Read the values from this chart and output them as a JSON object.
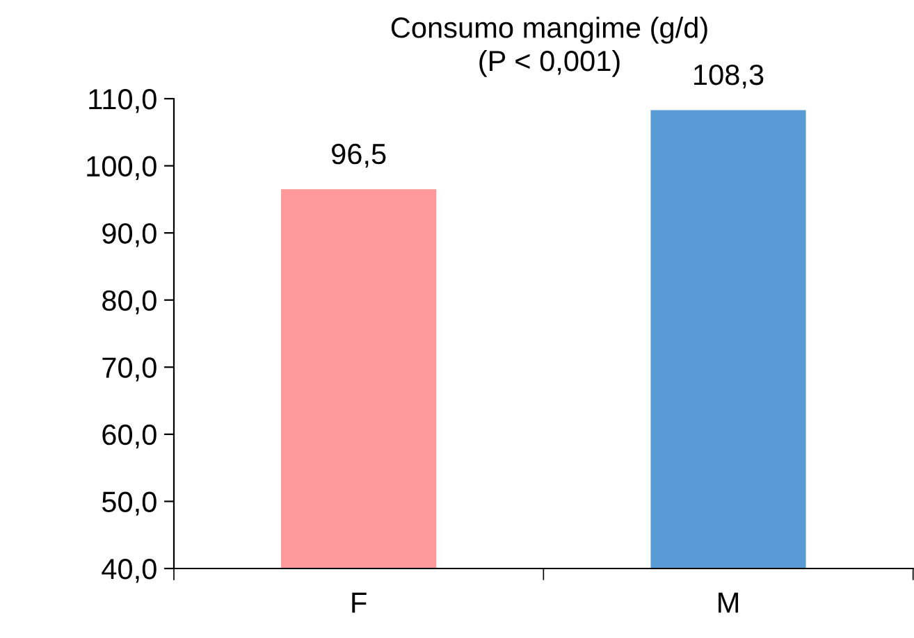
{
  "chart_data": {
    "type": "bar",
    "title": "Consumo mangime (g/d)\n(P < 0,001)",
    "categories": [
      "F",
      "M"
    ],
    "values": [
      96.5,
      108.3
    ],
    "colors": [
      "#ff9999",
      "#5b9bd5"
    ],
    "value_labels": [
      "96,5",
      "108,3"
    ],
    "ylim": [
      40,
      110
    ],
    "yticks": [
      {
        "value": 40,
        "label": "40,0"
      },
      {
        "value": 50,
        "label": "50,0"
      },
      {
        "value": 60,
        "label": "60,0"
      },
      {
        "value": 70,
        "label": "70,0"
      },
      {
        "value": 80,
        "label": "80,0"
      },
      {
        "value": 90,
        "label": "90,0"
      },
      {
        "value": 100,
        "label": "100,0"
      },
      {
        "value": 110,
        "label": "110,0"
      }
    ],
    "grid": false,
    "legend": false
  }
}
